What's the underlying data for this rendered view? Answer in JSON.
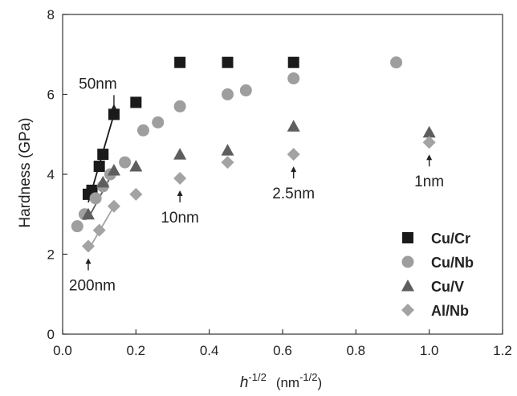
{
  "chart_data": {
    "type": "scatter",
    "xlabel": {
      "main": "h",
      "main_sup": "-1/2",
      "unit": "(nm",
      "unit_sup": "-1/2",
      "unit_close": ")"
    },
    "ylabel": "Hardness (GPa)",
    "xlim": [
      0.0,
      1.2
    ],
    "ylim": [
      0,
      8
    ],
    "xticks": [
      0.0,
      0.2,
      0.4,
      0.6,
      0.8,
      1.0,
      1.2
    ],
    "xtick_labels": [
      "0.0",
      "0.2",
      "0.4",
      "0.6",
      "0.8",
      "1.0",
      "1.2"
    ],
    "yticks": [
      0,
      2,
      4,
      6,
      8
    ],
    "ytick_labels": [
      "0",
      "2",
      "4",
      "6",
      "8"
    ],
    "grid": false,
    "legend_position": "bottom-right",
    "series": [
      {
        "name": "Cu/Cr",
        "marker": "square",
        "color": "#1a1a1a",
        "points": [
          [
            0.07,
            3.5
          ],
          [
            0.08,
            3.6
          ],
          [
            0.1,
            4.2
          ],
          [
            0.11,
            4.5
          ],
          [
            0.14,
            5.5
          ],
          [
            0.2,
            5.8
          ],
          [
            0.32,
            6.8
          ],
          [
            0.45,
            6.8
          ],
          [
            0.63,
            6.8
          ]
        ],
        "fit": [
          [
            0.07,
            3.3
          ],
          [
            0.14,
            5.5
          ]
        ]
      },
      {
        "name": "Cu/Nb",
        "marker": "circle",
        "color": "#9e9e9e",
        "points": [
          [
            0.04,
            2.7
          ],
          [
            0.06,
            3.0
          ],
          [
            0.09,
            3.4
          ],
          [
            0.11,
            3.7
          ],
          [
            0.13,
            4.0
          ],
          [
            0.17,
            4.3
          ],
          [
            0.22,
            5.1
          ],
          [
            0.26,
            5.3
          ],
          [
            0.32,
            5.7
          ],
          [
            0.45,
            6.0
          ],
          [
            0.5,
            6.1
          ],
          [
            0.63,
            6.4
          ],
          [
            0.91,
            6.8
          ]
        ],
        "fit": null
      },
      {
        "name": "Cu/V",
        "marker": "triangle",
        "color": "#5e5e5e",
        "points": [
          [
            0.07,
            3.0
          ],
          [
            0.11,
            3.8
          ],
          [
            0.14,
            4.1
          ],
          [
            0.2,
            4.2
          ],
          [
            0.32,
            4.5
          ],
          [
            0.45,
            4.6
          ],
          [
            0.63,
            5.2
          ],
          [
            1.0,
            5.05
          ]
        ],
        "fit": [
          [
            0.07,
            2.9
          ],
          [
            0.14,
            4.1
          ]
        ]
      },
      {
        "name": "Al/Nb",
        "marker": "diamond",
        "color": "#a3a3a3",
        "points": [
          [
            0.07,
            2.2
          ],
          [
            0.1,
            2.6
          ],
          [
            0.14,
            3.2
          ],
          [
            0.2,
            3.5
          ],
          [
            0.32,
            3.9
          ],
          [
            0.45,
            4.3
          ],
          [
            0.63,
            4.5
          ],
          [
            1.0,
            4.8
          ]
        ],
        "fit": [
          [
            0.07,
            2.1
          ],
          [
            0.14,
            3.2
          ]
        ]
      }
    ],
    "annotations": [
      {
        "text": "50nm",
        "x": 0.14,
        "y": 5.5,
        "pos": "above"
      },
      {
        "text": "10nm",
        "x": 0.32,
        "y": 3.9,
        "pos": "below"
      },
      {
        "text": "2.5nm",
        "x": 0.63,
        "y": 4.5,
        "pos": "below"
      },
      {
        "text": "1nm",
        "x": 1.0,
        "y": 4.8,
        "pos": "below"
      },
      {
        "text": "200nm",
        "x": 0.07,
        "y": 2.2,
        "pos": "below"
      }
    ]
  }
}
